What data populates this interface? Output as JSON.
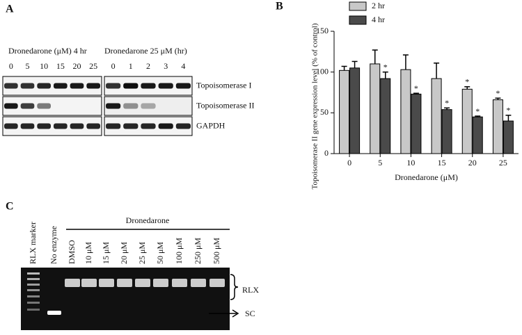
{
  "panel_a": {
    "label": "A",
    "left_heading": "Dronedarone (μM) 4 hr",
    "right_heading": "Dronedarone 25 μM (hr)",
    "left_lanes": [
      "0",
      "5",
      "10",
      "15",
      "20",
      "25"
    ],
    "right_lanes": [
      "0",
      "1",
      "2",
      "3",
      "4"
    ],
    "rows": [
      "Topoisomerase I",
      "Topoisomerase II",
      "GAPDH"
    ]
  },
  "chart_data": {
    "type": "bar",
    "label": "B",
    "y_label": "Topoisomerase II gene expression level (% of control)",
    "x_label": "Dronedarone (μM)",
    "categories": [
      "0",
      "5",
      "10",
      "15",
      "20",
      "25"
    ],
    "series": [
      {
        "name": "2 hr",
        "color": "#c8c8c8",
        "values": [
          102,
          110,
          103,
          92,
          79,
          66
        ],
        "errors": [
          5,
          17,
          18,
          19,
          3,
          2
        ],
        "markers": [
          null,
          null,
          null,
          null,
          "*",
          "*"
        ]
      },
      {
        "name": "4 hr",
        "color": "#4a4a4a",
        "values": [
          105,
          92,
          73,
          54,
          45,
          40
        ],
        "errors": [
          8,
          8,
          1,
          2,
          1,
          7
        ],
        "markers": [
          null,
          "*",
          "*",
          "*",
          "*",
          "*"
        ]
      }
    ],
    "ylim": [
      0,
      150
    ],
    "yticks": [
      0,
      50,
      100,
      150
    ]
  },
  "panel_c": {
    "label": "C",
    "group_label": "Dronedarone",
    "lanes": [
      "RLX marker",
      "No enzyme",
      "DMSO",
      "10 μM",
      "15 μM",
      "20 μM",
      "25 μM",
      "50 μM",
      "100 μM",
      "250 μM",
      "500 μM"
    ],
    "band_labels": [
      "RLX",
      "SC"
    ]
  }
}
